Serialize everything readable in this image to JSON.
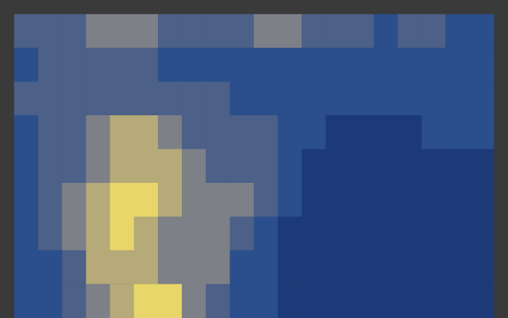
{
  "chart_data": {
    "type": "heatmap",
    "tick_labels": false,
    "grid": false,
    "zlim": [
      0,
      1
    ],
    "levels": [
      0,
      0.2,
      0.35,
      0.5,
      0.65,
      0.8,
      1
    ],
    "colors": [
      "#1c3a78",
      "#2b4e8c",
      "#4c6088",
      "#7d8087",
      "#b5aa78",
      "#e8d66a"
    ],
    "cells": [
      [
        0.35,
        0.35,
        0.4,
        0.5,
        0.55,
        0.5,
        0.45,
        0.35,
        0.35,
        0.45,
        0.5,
        0.55,
        0.45,
        0.35,
        0.35,
        0.3,
        0.35,
        0.35,
        0.3,
        0.3
      ],
      [
        0.3,
        0.35,
        0.35,
        0.4,
        0.45,
        0.45,
        0.3,
        0.3,
        0.3,
        0.2,
        0.2,
        0.2,
        0.25,
        0.25,
        0.25,
        0.3,
        0.3,
        0.3,
        0.3,
        0.25
      ],
      [
        0.4,
        0.4,
        0.45,
        0.45,
        0.4,
        0.4,
        0.35,
        0.35,
        0.35,
        0.3,
        0.3,
        0.3,
        0.25,
        0.2,
        0.2,
        0.2,
        0.2,
        0.2,
        0.2,
        0.2
      ],
      [
        0.3,
        0.45,
        0.45,
        0.5,
        0.65,
        0.65,
        0.6,
        0.45,
        0.45,
        0.45,
        0.35,
        0.3,
        0.2,
        0.15,
        0.15,
        0.15,
        0.15,
        0.2,
        0.2,
        0.2
      ],
      [
        0.3,
        0.45,
        0.45,
        0.6,
        0.75,
        0.75,
        0.7,
        0.6,
        0.45,
        0.45,
        0.35,
        0.2,
        0.15,
        0.15,
        0.15,
        0.15,
        0.15,
        0.15,
        0.15,
        0.15
      ],
      [
        0.25,
        0.4,
        0.55,
        0.7,
        0.85,
        0.85,
        0.7,
        0.55,
        0.5,
        0.5,
        0.35,
        0.2,
        0.15,
        0.15,
        0.15,
        0.15,
        0.15,
        0.15,
        0.15,
        0.15
      ],
      [
        0.2,
        0.35,
        0.5,
        0.7,
        0.85,
        0.75,
        0.55,
        0.6,
        0.5,
        0.35,
        0.25,
        0.15,
        0.15,
        0.15,
        0.15,
        0.15,
        0.15,
        0.15,
        0.15,
        0.15
      ],
      [
        0.2,
        0.3,
        0.45,
        0.65,
        0.7,
        0.65,
        0.5,
        0.55,
        0.5,
        0.3,
        0.2,
        0.15,
        0.15,
        0.15,
        0.15,
        0.15,
        0.15,
        0.15,
        0.15,
        0.15
      ],
      [
        0.2,
        0.25,
        0.4,
        0.55,
        0.65,
        0.9,
        0.8,
        0.55,
        0.4,
        0.3,
        0.2,
        0.15,
        0.15,
        0.15,
        0.15,
        0.15,
        0.15,
        0.15,
        0.15,
        0.15
      ]
    ]
  }
}
